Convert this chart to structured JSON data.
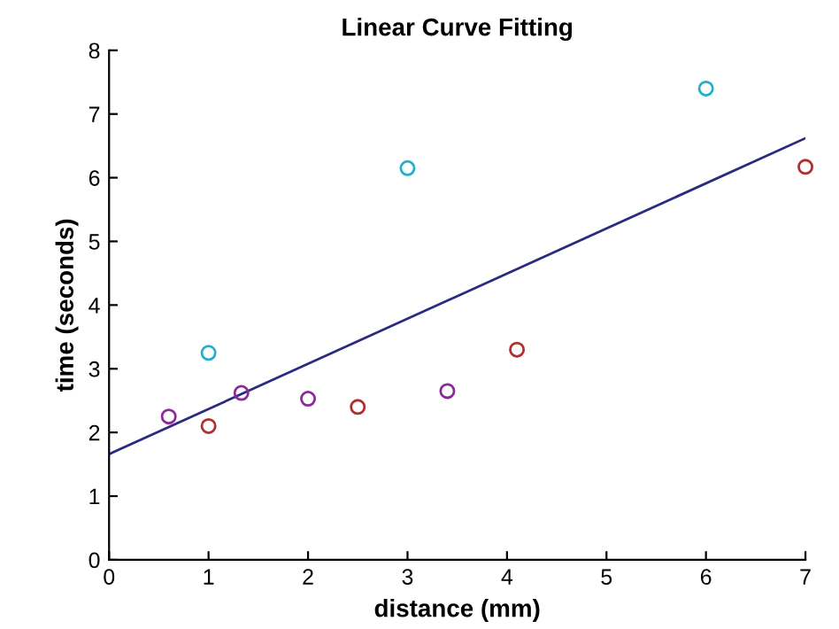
{
  "chart_data": {
    "type": "scatter",
    "title": "Linear Curve Fitting",
    "xlabel": "distance (mm)",
    "ylabel": "time (seconds)",
    "xlim": [
      0,
      7
    ],
    "ylim": [
      0,
      8
    ],
    "xticks": [
      0,
      1,
      2,
      3,
      4,
      5,
      6,
      7
    ],
    "yticks": [
      0,
      1,
      2,
      3,
      4,
      5,
      6,
      7,
      8
    ],
    "grid": false,
    "legend": false,
    "marker": "circle",
    "series": [
      {
        "color": "#22b0c8",
        "x": [
          1,
          3,
          6
        ],
        "values": [
          3.25,
          6.15,
          7.4
        ]
      },
      {
        "color": "#8c2a9a",
        "x": [
          0.6,
          1.33,
          2,
          3.4
        ],
        "values": [
          2.25,
          2.62,
          2.53,
          2.65
        ]
      },
      {
        "color": "#b03030",
        "x": [
          1,
          2.5,
          4.1,
          7
        ],
        "values": [
          2.1,
          2.4,
          3.3,
          6.17
        ]
      },
      {
        "type": "line",
        "color": "#2a2a80",
        "x": [
          0,
          7
        ],
        "values": [
          1.66,
          6.62
        ],
        "marker": "none"
      }
    ]
  }
}
